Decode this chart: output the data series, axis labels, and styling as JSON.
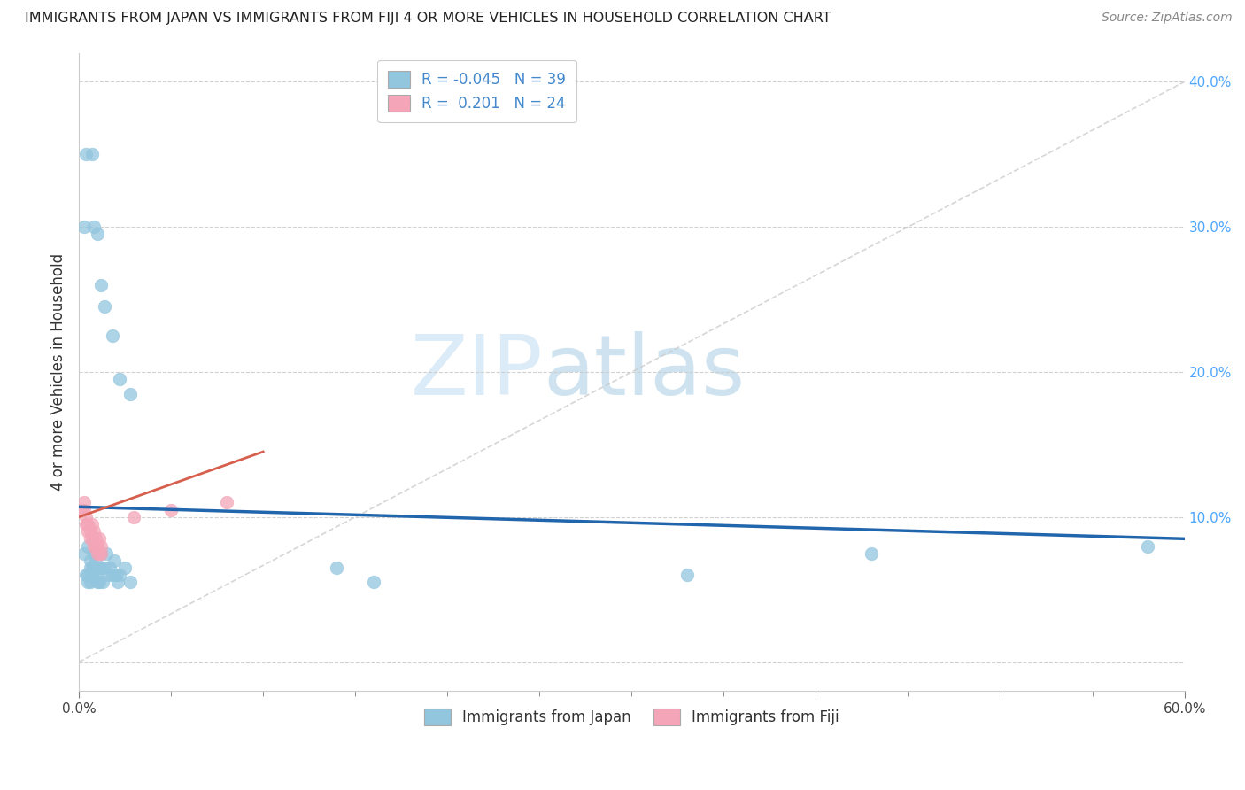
{
  "title": "IMMIGRANTS FROM JAPAN VS IMMIGRANTS FROM FIJI 4 OR MORE VEHICLES IN HOUSEHOLD CORRELATION CHART",
  "source": "Source: ZipAtlas.com",
  "ylabel": "4 or more Vehicles in Household",
  "xlim": [
    0.0,
    0.6
  ],
  "ylim": [
    -0.02,
    0.42
  ],
  "xtick_vals": [
    0.0,
    0.6
  ],
  "xtick_labels": [
    "0.0%",
    "60.0%"
  ],
  "ytick_vals": [
    0.0,
    0.1,
    0.2,
    0.3,
    0.4
  ],
  "ytick_labels": [
    "",
    "10.0%",
    "20.0%",
    "30.0%",
    "40.0%"
  ],
  "legend_labels": [
    "Immigrants from Japan",
    "Immigrants from Fiji"
  ],
  "R_japan": -0.045,
  "N_japan": 39,
  "R_fiji": 0.201,
  "N_fiji": 24,
  "color_japan": "#92c5de",
  "color_fiji": "#f4a5b8",
  "trendline_color_japan": "#2166ac",
  "trendline_color_fiji": "#d6604d",
  "watermark_zip": "ZIP",
  "watermark_atlas": "atlas",
  "japan_x": [
    0.003,
    0.004,
    0.005,
    0.005,
    0.005,
    0.006,
    0.006,
    0.006,
    0.007,
    0.007,
    0.008,
    0.008,
    0.009,
    0.009,
    0.01,
    0.01,
    0.011,
    0.011,
    0.012,
    0.012,
    0.013,
    0.014,
    0.015,
    0.016,
    0.017,
    0.018,
    0.019,
    0.02,
    0.021,
    0.022,
    0.025,
    0.028,
    0.14,
    0.16,
    0.33,
    0.43,
    0.58,
    0.003,
    0.004
  ],
  "japan_y": [
    0.075,
    0.06,
    0.06,
    0.08,
    0.055,
    0.065,
    0.07,
    0.055,
    0.065,
    0.06,
    0.075,
    0.065,
    0.07,
    0.06,
    0.065,
    0.055,
    0.065,
    0.055,
    0.075,
    0.065,
    0.055,
    0.065,
    0.075,
    0.06,
    0.065,
    0.06,
    0.07,
    0.06,
    0.055,
    0.06,
    0.065,
    0.055,
    0.065,
    0.055,
    0.06,
    0.075,
    0.08,
    0.3,
    0.35
  ],
  "japan_y_high": [
    0.3,
    0.35,
    0.295,
    0.26,
    0.245,
    0.225,
    0.195,
    0.185
  ],
  "japan_x_high": [
    0.008,
    0.007,
    0.01,
    0.012,
    0.014,
    0.018,
    0.022,
    0.028
  ],
  "fiji_x": [
    0.002,
    0.003,
    0.003,
    0.004,
    0.004,
    0.005,
    0.005,
    0.006,
    0.006,
    0.007,
    0.007,
    0.008,
    0.008,
    0.009,
    0.009,
    0.01,
    0.01,
    0.011,
    0.011,
    0.012,
    0.012,
    0.03,
    0.05,
    0.08
  ],
  "fiji_y": [
    0.105,
    0.105,
    0.11,
    0.095,
    0.1,
    0.09,
    0.095,
    0.085,
    0.09,
    0.085,
    0.095,
    0.08,
    0.09,
    0.08,
    0.085,
    0.075,
    0.08,
    0.075,
    0.085,
    0.075,
    0.08,
    0.1,
    0.105,
    0.11
  ]
}
